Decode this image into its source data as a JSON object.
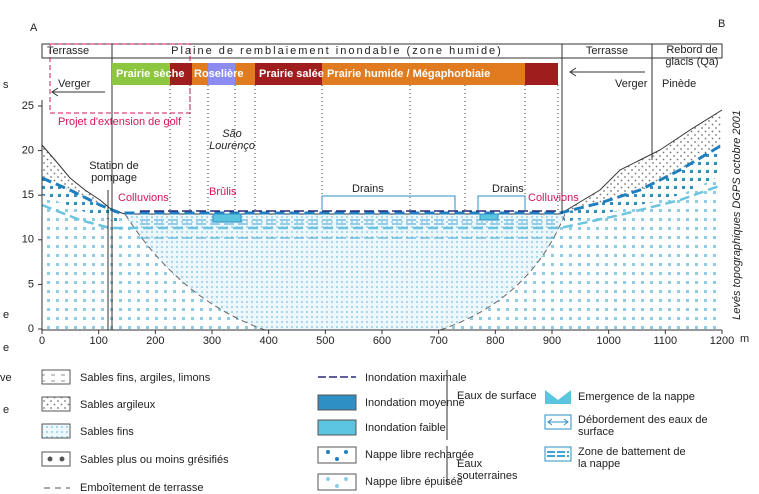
{
  "corners": [
    "A",
    "B"
  ],
  "header": {
    "zones": [
      "Terrasse",
      "Plaine de remblaiement inondable (zone humide)",
      "Terrasse",
      "Rebord de glacis (Qa)"
    ]
  },
  "vegetation": [
    "Prairie sèche",
    "Roselière",
    "Prairie salée",
    "Prairie humide / Mégaphorbiaie"
  ],
  "land_use": [
    "Verger",
    "Verger",
    "Pinède",
    "Projet d'extension de golf"
  ],
  "annotations": [
    "São Lourenço",
    "Station de pompage",
    "Colluvions",
    "Brûlis",
    "Drains",
    "Drains",
    "Colluvions"
  ],
  "survey_note": "Levés topographiques DGPS  octobre 2001",
  "axes": {
    "x_ticks": [
      0,
      100,
      200,
      300,
      400,
      500,
      600,
      700,
      800,
      900,
      1000,
      1100,
      1200
    ],
    "x_unit": "m",
    "y_ticks": [
      0,
      5,
      10,
      15,
      20,
      25
    ]
  },
  "legend": {
    "lithology": [
      "Sables fins, argiles, limons",
      "Sables argileux",
      "Sables fins",
      "Sables plus ou moins grésifiés",
      "Emboîtement de terrasse"
    ],
    "surface_water": {
      "group": "Eaux de surface",
      "items": [
        "Inondation maximale",
        "Inondation moyenne",
        "Inondation faible"
      ]
    },
    "groundwater": {
      "group": "Eaux souterraines",
      "items": [
        "Nappe libre rechargée",
        "Nappe libre épuisée"
      ]
    },
    "symbols": [
      "Emergence de la nappe",
      "Débordement des eaux de surface",
      "Zone de battement de la nappe"
    ]
  },
  "cropped_margin": [
    "s",
    "e",
    "e",
    "ve",
    "e"
  ]
}
